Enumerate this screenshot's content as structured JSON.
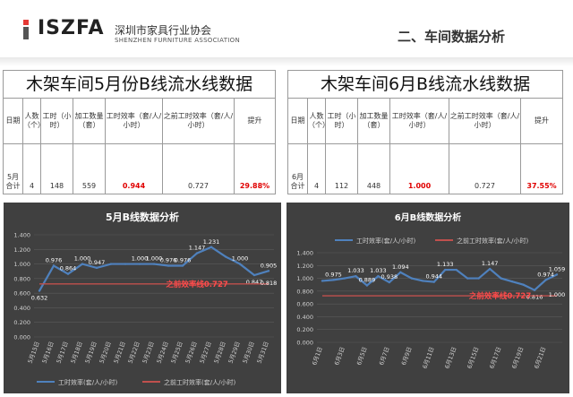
{
  "header": {
    "logo_text": "ISZFA",
    "logo_cn": "深圳市家具行业协会",
    "logo_en": "SHENZHEN FURNITURE ASSOCIATION",
    "page_title": "二、车间数据分析",
    "colors": {
      "logo_red": "#e53935",
      "title_gray": "#333333"
    }
  },
  "table_may": {
    "title": "木架车间5月份B线流水线数据",
    "headers": [
      "日期",
      "人数（个）",
      "工时（小时）",
      "加工数量（套）",
      "工时效率（套/人/小时）",
      "之前工时效率（套/人/小时）",
      "提升"
    ],
    "row": [
      "5月合计",
      "4",
      "148",
      "559",
      "0.944",
      "0.727",
      "29.88%"
    ]
  },
  "table_june": {
    "title": "木架车间6月B线流水线数据",
    "headers": [
      "日期",
      "人数（个）",
      "工时（小时）",
      "加工数量（套）",
      "工时效率（套/人/小时）",
      "之前工时效率（套/人/小时）",
      "提升"
    ],
    "row": [
      "6月合计",
      "4",
      "112",
      "448",
      "1.000",
      "0.727",
      "37.55%"
    ]
  },
  "chart_data": [
    {
      "type": "line",
      "title": "5月B线数据分析",
      "x": [
        "5月15日",
        "5月16日",
        "5月17日",
        "5月18日",
        "5月19日",
        "5月20日",
        "5月21日",
        "5月22日",
        "5月23日",
        "5月24日",
        "5月25日",
        "5月26日",
        "5月27日",
        "5月28日",
        "5月29日",
        "5月30日",
        "5月31日"
      ],
      "series": [
        {
          "name": "工时效率(套/人/小时)",
          "values": [
            0.632,
            0.976,
            0.864,
            1.0,
            0.947,
            1.0,
            1.0,
            1.0,
            1.0,
            0.976,
            0.976,
            1.147,
            1.231,
            1.1,
            1.0,
            0.847,
            0.905
          ],
          "labels": [
            "0.632",
            "0.976",
            "0.864",
            "1.000",
            "0.947",
            "",
            "",
            "1.000",
            "1.000",
            "0.976",
            "0.976",
            "1.147",
            "1.231",
            "",
            "1.000",
            "0.847",
            "0.905"
          ],
          "color": "#4f81bd"
        },
        {
          "name": "之前工时效率(套/人/小时)",
          "values": [
            0.727,
            0.727,
            0.727,
            0.727,
            0.727,
            0.727,
            0.727,
            0.727,
            0.727,
            0.727,
            0.727,
            0.727,
            0.727,
            0.727,
            0.727,
            0.727,
            0.727
          ],
          "color": "#c0504d"
        }
      ],
      "extra_labels": [
        {
          "x_index": 16,
          "text": "0.818"
        }
      ],
      "annotation": "之前效率线0.727",
      "yticks": [
        "0.000",
        "0.200",
        "0.400",
        "0.600",
        "0.800",
        "1.000",
        "1.200",
        "1.400"
      ],
      "ylim": [
        0,
        1.4
      ],
      "legend": "bottom",
      "grid": true
    },
    {
      "type": "line",
      "title": "6月B线数据分析",
      "x": [
        "6月1日",
        "6月2日",
        "6月3日",
        "6月4日",
        "6月5日",
        "6月6日",
        "6月7日",
        "6月8日",
        "6月9日",
        "6月10日",
        "6月11日",
        "6月12日",
        "6月13日",
        "6月14日",
        "6月15日",
        "6月16日",
        "6月17日",
        "6月18日",
        "6月19日",
        "6月20日",
        "6月21日",
        "6月22日"
      ],
      "xticks": [
        "6月1日",
        "6月3日",
        "6月5日",
        "6月7日",
        "6月9日",
        "6月11日",
        "6月13日",
        "6月15日",
        "6月17日",
        "6月19日",
        "6月21日"
      ],
      "series": [
        {
          "name": "工时效率(套/人/小时)",
          "values": [
            0.96,
            0.975,
            1.0,
            1.033,
            0.889,
            1.033,
            0.938,
            1.094,
            1.0,
            0.96,
            0.944,
            1.133,
            1.133,
            1.0,
            1.0,
            1.147,
            1.0,
            0.95,
            0.9,
            0.816,
            0.974,
            1.059
          ],
          "labels": [
            "",
            "0.975",
            "",
            "1.033",
            "0.889",
            "1.033",
            "0.938",
            "1.094",
            "",
            "",
            "0.944",
            "1.133",
            "",
            "",
            "",
            "1.147",
            "",
            "",
            "",
            "0.816",
            "0.974",
            "1.059"
          ],
          "color": "#4f81bd"
        },
        {
          "name": "之前工时效率(套/人/小时)",
          "values": [
            0.727,
            0.727,
            0.727,
            0.727,
            0.727,
            0.727,
            0.727,
            0.727,
            0.727,
            0.727,
            0.727,
            0.727,
            0.727,
            0.727,
            0.727,
            0.727,
            0.727,
            0.727,
            0.727,
            0.727,
            0.727,
            0.727
          ],
          "color": "#c0504d"
        }
      ],
      "extra_labels": [
        {
          "x_index": 21,
          "text": "1.000"
        }
      ],
      "annotation": "之前效率线0.727",
      "yticks": [
        "0.000",
        "0.200",
        "0.400",
        "0.600",
        "0.800",
        "1.000",
        "1.200",
        "1.400"
      ],
      "ylim": [
        0,
        1.4
      ],
      "legend": "top",
      "grid": true
    }
  ]
}
